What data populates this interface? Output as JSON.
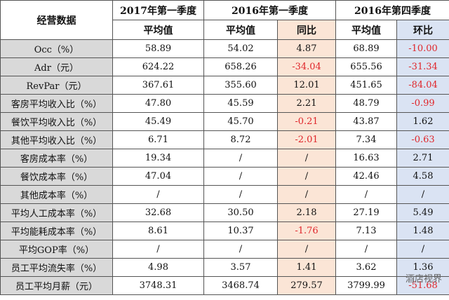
{
  "table": {
    "header": {
      "label": "经营数据",
      "periods": [
        "2017年第一季度",
        "2016年第一季度",
        "2016年第四季度"
      ],
      "columns": [
        "平均值",
        "平均值",
        "同比",
        "平均值",
        "环比"
      ]
    },
    "rows": [
      [
        "Occ（%）",
        "58.89",
        "54.02",
        "4.87",
        "68.89",
        "-10.00"
      ],
      [
        "Adr（元）",
        "624.22",
        "658.26",
        "-34.04",
        "655.56",
        "-31.34"
      ],
      [
        "RevPar（元）",
        "367.61",
        "355.60",
        "12.01",
        "451.65",
        "-84.04"
      ],
      [
        "客房平均收入比（%）",
        "47.80",
        "45.59",
        "2.21",
        "48.79",
        "-0.99"
      ],
      [
        "餐饮平均收入比（%）",
        "45.49",
        "45.70",
        "-0.21",
        "43.87",
        "1.62"
      ],
      [
        "其他平均收入比（%）",
        "6.71",
        "8.72",
        "-2.01",
        "7.34",
        "-0.63"
      ],
      [
        "客房成本率（%）",
        "19.34",
        "/",
        "/",
        "16.63",
        "2.71"
      ],
      [
        "餐饮成本率（%）",
        "47.04",
        "/",
        "/",
        "42.46",
        "4.58"
      ],
      [
        "其他成本率（%）",
        "/",
        "/",
        "/",
        "/",
        "/"
      ],
      [
        "平均人工成本率（%）",
        "32.68",
        "30.50",
        "2.18",
        "27.19",
        "5.49"
      ],
      [
        "平均能耗成本率（%）",
        "8.61",
        "10.37",
        "-1.76",
        "7.13",
        "1.48"
      ],
      [
        "平均GOP率（%）",
        "/",
        "/",
        "/",
        "/",
        "/"
      ],
      [
        "员工平均流失率（%）",
        "4.98",
        "3.57",
        "1.41",
        "3.62",
        "1.36"
      ],
      [
        "员工平均月薪（元）",
        "3748.31",
        "3468.74",
        "279.57",
        "3799.99",
        "-51.68"
      ]
    ]
  },
  "watermark": "酒店视界"
}
